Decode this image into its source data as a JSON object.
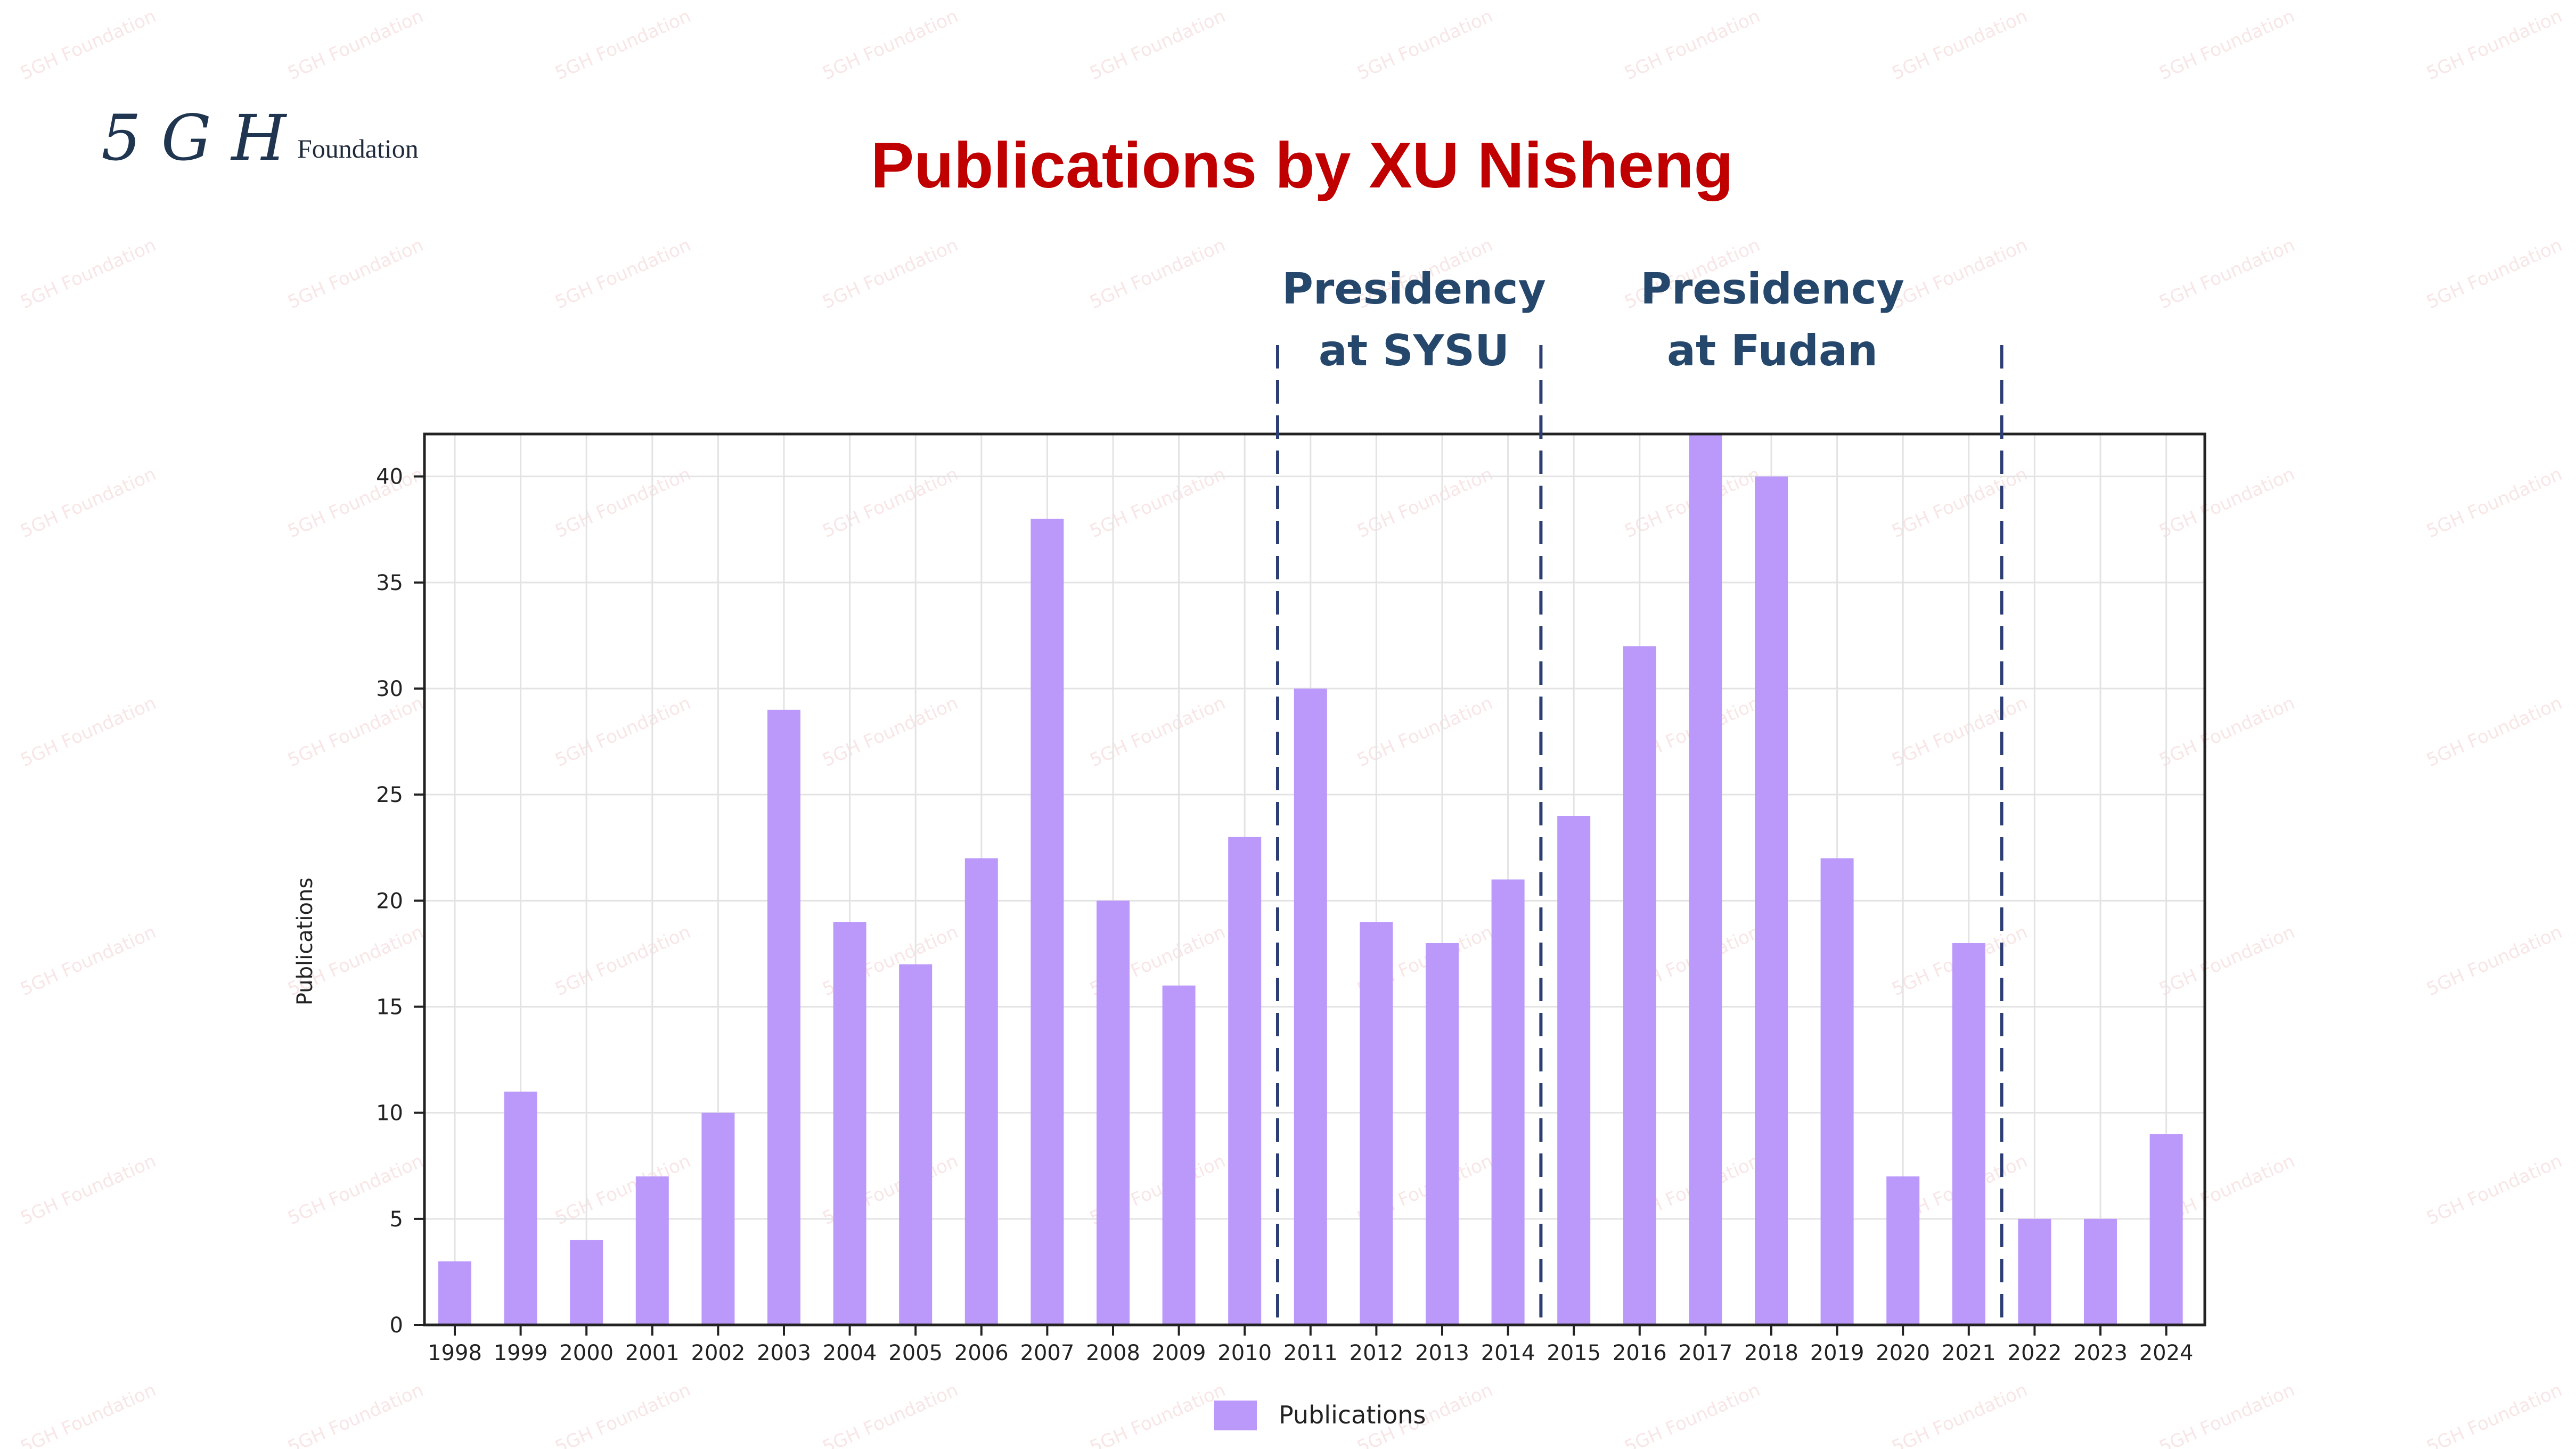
{
  "logo": {
    "mark": "5 G H",
    "text": "Foundation"
  },
  "watermark": "5GH Foundation",
  "colors": {
    "bar": "#bb99fb",
    "title": "#c00000",
    "annotation": "#24476b",
    "divider": "#2c3e74",
    "grid": "#e3e3e3"
  },
  "annotations": [
    {
      "line1": "Presidency",
      "line2": "at SYSU"
    },
    {
      "line1": "Presidency",
      "line2": "at Fudan"
    }
  ],
  "chart_data": {
    "type": "bar",
    "title": "Publications by XU Nisheng",
    "xlabel": "",
    "ylabel": "Publications",
    "categories": [
      "1998",
      "1999",
      "2000",
      "2001",
      "2002",
      "2003",
      "2004",
      "2005",
      "2006",
      "2007",
      "2008",
      "2009",
      "2010",
      "2011",
      "2012",
      "2013",
      "2014",
      "2015",
      "2016",
      "2017",
      "2018",
      "2019",
      "2020",
      "2021",
      "2022",
      "2023",
      "2024"
    ],
    "series": [
      {
        "name": "Publications",
        "values": [
          3,
          11,
          4,
          7,
          10,
          29,
          19,
          17,
          22,
          38,
          20,
          16,
          23,
          30,
          19,
          18,
          21,
          24,
          32,
          42,
          40,
          22,
          7,
          18,
          5,
          5,
          9
        ]
      }
    ],
    "ylim": [
      0,
      42
    ],
    "yticks": [
      0,
      5,
      10,
      15,
      20,
      25,
      30,
      35,
      40
    ],
    "grid": true,
    "legend": "bottom-center",
    "period_dividers_after": [
      "2010",
      "2014",
      "2021"
    ]
  }
}
